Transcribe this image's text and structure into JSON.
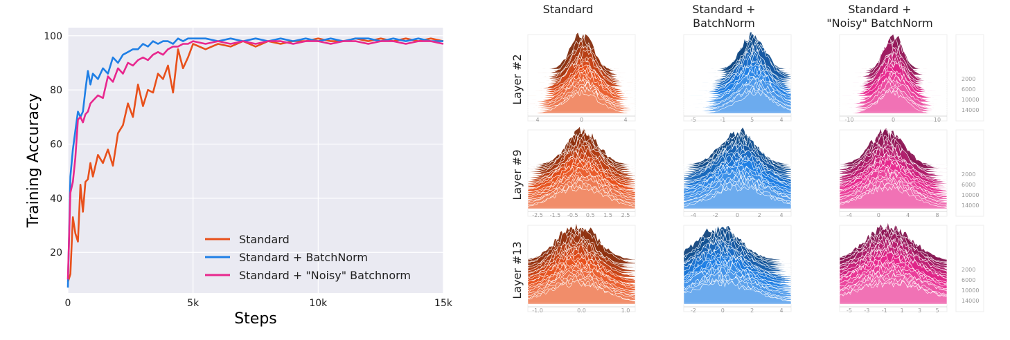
{
  "chart_data": [
    {
      "type": "line",
      "xlabel": "Steps",
      "ylabel": "Training Accuracy",
      "xlim": [
        0,
        15000
      ],
      "ylim": [
        5,
        103
      ],
      "xtick_values": [
        0,
        5000,
        10000,
        15000
      ],
      "xtick_labels": [
        "0",
        "5k",
        "10k",
        "15k"
      ],
      "ytick_values": [
        20,
        40,
        60,
        80,
        100
      ],
      "ytick_labels": [
        "20",
        "40",
        "60",
        "80",
        "100"
      ],
      "grid": true,
      "legend": "bottom-right",
      "colors": {
        "background": "#eaeaf2",
        "grid": "#ffffff"
      },
      "series": [
        {
          "name": "Standard",
          "color": "#e8501b",
          "x": [
            0,
            100,
            200,
            300,
            400,
            500,
            600,
            700,
            800,
            900,
            1000,
            1200,
            1400,
            1600,
            1800,
            2000,
            2200,
            2400,
            2600,
            2800,
            3000,
            3200,
            3400,
            3600,
            3800,
            4000,
            4200,
            4400,
            4600,
            4800,
            5000,
            5500,
            6000,
            6500,
            7000,
            7500,
            8000,
            8500,
            9000,
            9500,
            10000,
            10500,
            11000,
            11500,
            12000,
            12500,
            13000,
            13500,
            14000,
            14500,
            15000
          ],
          "y": [
            9,
            12,
            33,
            27,
            24,
            45,
            35,
            46,
            47,
            53,
            48,
            56,
            53,
            58,
            52,
            64,
            67,
            75,
            70,
            82,
            74,
            80,
            79,
            86,
            84,
            89,
            79,
            95,
            88,
            92,
            97,
            95,
            97,
            96,
            98,
            96,
            98,
            97,
            98,
            98,
            99,
            98,
            98,
            99,
            98,
            99,
            98,
            99,
            98,
            99,
            98
          ]
        },
        {
          "name": "Standard + BatchNorm",
          "color": "#1f7fe5",
          "x": [
            0,
            100,
            200,
            300,
            400,
            500,
            600,
            700,
            800,
            900,
            1000,
            1200,
            1400,
            1600,
            1800,
            2000,
            2200,
            2400,
            2600,
            2800,
            3000,
            3200,
            3400,
            3600,
            3800,
            4000,
            4200,
            4400,
            4600,
            4800,
            5000,
            5500,
            6000,
            6500,
            7000,
            7500,
            8000,
            8500,
            9000,
            9500,
            10000,
            10500,
            11000,
            11500,
            12000,
            12500,
            13000,
            13500,
            14000,
            14500,
            15000
          ],
          "y": [
            7,
            48,
            58,
            65,
            72,
            70,
            72,
            80,
            87,
            82,
            86,
            84,
            88,
            86,
            92,
            90,
            93,
            94,
            95,
            95,
            97,
            96,
            98,
            97,
            98,
            98,
            97,
            99,
            98,
            99,
            99,
            99,
            98,
            99,
            98,
            99,
            98,
            99,
            98,
            99,
            98,
            99,
            98,
            99,
            99,
            98,
            99,
            98,
            99,
            98,
            98
          ]
        },
        {
          "name": "Standard + \"Noisy\" Batchnorm",
          "color": "#e8288e",
          "x": [
            0,
            100,
            200,
            300,
            400,
            500,
            600,
            700,
            800,
            900,
            1000,
            1200,
            1400,
            1600,
            1800,
            2000,
            2200,
            2400,
            2600,
            2800,
            3000,
            3200,
            3400,
            3600,
            3800,
            4000,
            4200,
            4400,
            4600,
            4800,
            5000,
            5500,
            6000,
            6500,
            7000,
            7500,
            8000,
            8500,
            9000,
            9500,
            10000,
            10500,
            11000,
            11500,
            12000,
            12500,
            13000,
            13500,
            14000,
            14500,
            15000
          ],
          "y": [
            10,
            42,
            46,
            55,
            69,
            70,
            68,
            71,
            72,
            75,
            76,
            78,
            77,
            85,
            83,
            88,
            86,
            90,
            89,
            91,
            92,
            91,
            93,
            94,
            93,
            95,
            96,
            96,
            97,
            97,
            98,
            97,
            98,
            97,
            98,
            97,
            98,
            98,
            97,
            98,
            98,
            97,
            98,
            98,
            97,
            98,
            98,
            97,
            98,
            98,
            97
          ]
        }
      ]
    },
    {
      "type": "other",
      "description_kind": "ridgeline histograms",
      "columns": [
        {
          "title": "Standard",
          "color": "#e8501b"
        },
        {
          "title": "Standard +\nBatchNorm",
          "color": "#1f7fe5"
        },
        {
          "title": "Standard +\n\"Noisy\" BatchNorm",
          "color": "#e8288e"
        }
      ],
      "rows": [
        {
          "label": "Layer #2"
        },
        {
          "label": "Layer #9"
        },
        {
          "label": "Layer #13"
        }
      ],
      "step_labels": [
        "2000",
        "6000",
        "10000",
        "14000"
      ],
      "panel_ticks": [
        [
          [
            "4",
            "0",
            "4"
          ],
          [
            "-5",
            "-1",
            "5",
            "4"
          ],
          [
            "-10",
            "0",
            "10"
          ]
        ],
        [
          [
            "-2.5",
            "-1.5",
            "-0.5",
            "0.5",
            "1.5",
            "2.5"
          ],
          [
            "-4",
            "-2",
            "0",
            "2",
            "4"
          ],
          [
            "-4",
            "0",
            "4",
            "8"
          ]
        ],
        [
          [
            "-1.0",
            "0.0",
            "1.0"
          ],
          [
            "-2",
            "0",
            "2",
            "4"
          ],
          [
            "-5",
            "-3",
            "-1",
            "1",
            "3",
            "5"
          ]
        ]
      ]
    }
  ]
}
